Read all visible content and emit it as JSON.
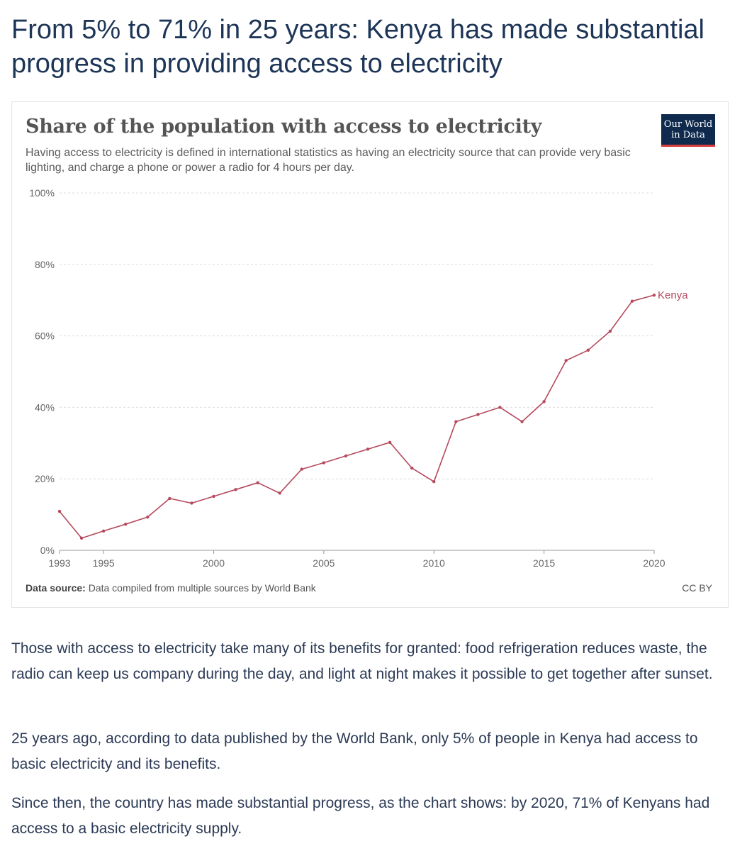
{
  "article": {
    "headline": "From 5% to 71% in 25 years: Kenya has made substantial progress in providing access to electricity",
    "paragraphs": [
      "Those with access to electricity take many of its benefits for granted: food refrigeration reduces waste, the radio can keep us company during the day, and light at night makes it possible to get together after sunset.",
      "25 years ago, according to data published by the World Bank, only 5% of people in Kenya had access to basic electricity and its benefits.",
      "Since then, the country has made substantial progress, as the chart shows: by 2020, 71% of Kenyans had access to a basic electricity supply."
    ]
  },
  "chart_data": {
    "type": "line",
    "title": "Share of the population with access to electricity",
    "subtitle": "Having access to electricity is defined in international statistics as having an electricity source that can provide very basic lighting, and charge a phone or power a radio for 4 hours per day.",
    "logo_lines": [
      "Our World",
      "in Data"
    ],
    "source_label": "Data source:",
    "source_text": "Data compiled from multiple sources by World Bank",
    "license": "CC BY",
    "xlabel": "",
    "ylabel": "",
    "xlim": [
      1993,
      2020
    ],
    "ylim": [
      0,
      100
    ],
    "grid": true,
    "x_ticks": [
      {
        "value": 1993,
        "label": "1993"
      },
      {
        "value": 1995,
        "label": "1995"
      },
      {
        "value": 2000,
        "label": "2000"
      },
      {
        "value": 2005,
        "label": "2005"
      },
      {
        "value": 2010,
        "label": "2010"
      },
      {
        "value": 2015,
        "label": "2015"
      },
      {
        "value": 2020,
        "label": "2020"
      }
    ],
    "y_ticks": [
      {
        "value": 0,
        "label": "0%"
      },
      {
        "value": 20,
        "label": "20%"
      },
      {
        "value": 40,
        "label": "40%"
      },
      {
        "value": 60,
        "label": "60%"
      },
      {
        "value": 80,
        "label": "80%"
      },
      {
        "value": 100,
        "label": "100%"
      }
    ],
    "series": [
      {
        "name": "Kenya",
        "color": "#b54a5e",
        "x": [
          1993,
          1994,
          1995,
          1996,
          1997,
          1998,
          1999,
          2000,
          2001,
          2002,
          2003,
          2004,
          2005,
          2006,
          2007,
          2008,
          2009,
          2010,
          2011,
          2012,
          2013,
          2014,
          2015,
          2016,
          2017,
          2018,
          2019,
          2020
        ],
        "values": [
          10.9,
          3.4,
          5.4,
          7.3,
          9.3,
          14.5,
          13.2,
          15.1,
          17.0,
          18.9,
          16.0,
          22.7,
          24.5,
          26.4,
          28.3,
          30.2,
          23.0,
          19.2,
          36.0,
          38.0,
          40.0,
          36.0,
          41.6,
          53.1,
          56.0,
          61.3,
          69.7,
          71.4
        ]
      }
    ]
  }
}
